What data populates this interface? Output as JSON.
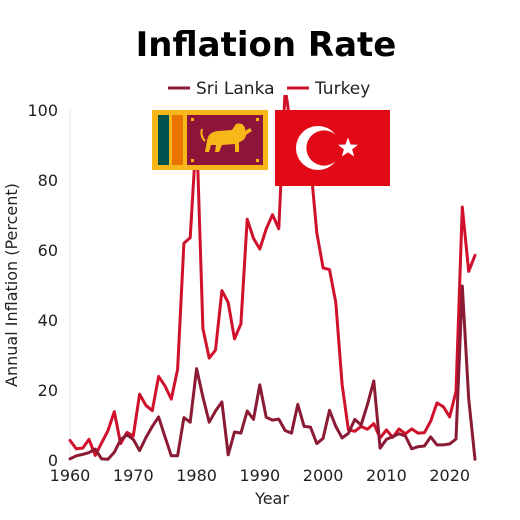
{
  "chart_data": {
    "type": "line",
    "title": "Inflation Rate",
    "xlabel": "Year",
    "ylabel": "Annual Inflation (Percent)",
    "xlim": [
      1960,
      2024
    ],
    "ylim": [
      0,
      100
    ],
    "x_ticks": [
      1960,
      1970,
      1980,
      1990,
      2000,
      2010,
      2020
    ],
    "y_ticks": [
      0,
      20,
      40,
      60,
      80,
      100
    ],
    "grid": false,
    "legend_position": "top-center",
    "x": [
      1960,
      1961,
      1962,
      1963,
      1964,
      1965,
      1966,
      1967,
      1968,
      1969,
      1970,
      1971,
      1972,
      1973,
      1974,
      1975,
      1976,
      1977,
      1978,
      1979,
      1980,
      1981,
      1982,
      1983,
      1984,
      1985,
      1986,
      1987,
      1988,
      1989,
      1990,
      1991,
      1992,
      1993,
      1994,
      1995,
      1996,
      1997,
      1998,
      1999,
      2000,
      2001,
      2002,
      2003,
      2004,
      2005,
      2006,
      2007,
      2008,
      2009,
      2010,
      2011,
      2012,
      2013,
      2014,
      2015,
      2016,
      2017,
      2018,
      2019,
      2020,
      2021,
      2022,
      2023,
      2024
    ],
    "series": [
      {
        "name": "Sri Lanka",
        "color": "#8b1a35",
        "values": [
          0.3,
          1.2,
          1.6,
          2.1,
          3.1,
          0.3,
          0.2,
          2.2,
          5.8,
          7.2,
          5.9,
          2.7,
          6.4,
          9.6,
          12.3,
          6.7,
          1.2,
          1.2,
          12.1,
          10.8,
          26.1,
          18,
          10.8,
          14,
          16.6,
          1.5,
          8,
          7.7,
          14,
          11.6,
          21.5,
          12.2,
          11.4,
          11.7,
          8.4,
          7.7,
          15.9,
          9.6,
          9.4,
          4.7,
          6.2,
          14.2,
          9.6,
          6.3,
          7.6,
          11.6,
          10,
          15.8,
          22.6,
          3.4,
          5.9,
          6.7,
          7.5,
          6.9,
          3.2,
          3.8,
          4,
          6.6,
          4.3,
          4.3,
          4.6,
          6,
          49.7,
          17.5,
          0.2
        ]
      },
      {
        "name": "Turkey",
        "color": "#d0112b",
        "values": [
          5.6,
          3.2,
          3.4,
          5.9,
          1.3,
          4.9,
          8.4,
          13.8,
          4.7,
          7.9,
          6.9,
          18.8,
          15.6,
          14.1,
          23.9,
          21.2,
          17.4,
          25.9,
          61.9,
          63.5,
          94.3,
          37.6,
          29.1,
          31.4,
          48.4,
          45,
          34.6,
          38.9,
          68.8,
          63.3,
          60.3,
          66,
          70.1,
          66.1,
          106.3,
          93.7,
          82.3,
          85.7,
          84.6,
          64.9,
          54.9,
          54.4,
          45,
          21.6,
          8.6,
          8.2,
          9.6,
          8.8,
          10.4,
          6.3,
          8.6,
          6.5,
          8.9,
          7.5,
          8.9,
          7.7,
          7.8,
          11.1,
          16.3,
          15.2,
          12.3,
          19.6,
          72.3,
          53.9,
          58.5
        ]
      }
    ],
    "flag_icons": [
      "sri-lanka-flag-icon",
      "turkey-flag-icon"
    ]
  }
}
